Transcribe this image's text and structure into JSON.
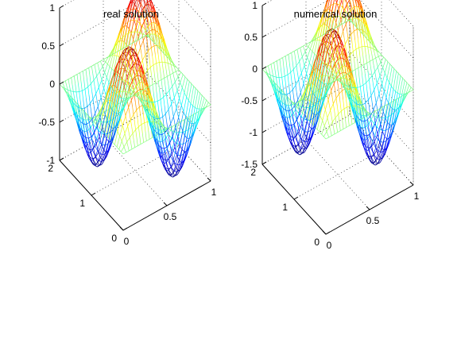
{
  "chart_data": [
    {
      "type": "surface",
      "title": "real solution",
      "function": "sin(2*pi*x)*sin(2*pi*y)",
      "x_range": [
        0,
        1
      ],
      "y_range": [
        0,
        2
      ],
      "z_range": [
        -1,
        1
      ],
      "z_ticks": [
        "-1",
        "-0.5",
        "0",
        "0.5",
        "1"
      ],
      "x_ticks": [
        "0",
        "0.5",
        "1"
      ],
      "y_ticks": [
        "0",
        "1",
        "2"
      ],
      "colormap": "jet",
      "grid": true,
      "mesh": "wireframe"
    },
    {
      "type": "surface",
      "title": "numerical solution",
      "function": "sin(2*pi*x)*sin(2*pi*y)",
      "x_range": [
        0,
        1
      ],
      "y_range": [
        0,
        2
      ],
      "z_range": [
        -1.5,
        1
      ],
      "z_ticks": [
        "-1.5",
        "-1",
        "-0.5",
        "0",
        "0.5",
        "1"
      ],
      "x_ticks": [
        "0",
        "0.5",
        "1"
      ],
      "y_ticks": [
        "0",
        "1",
        "2"
      ],
      "colormap": "jet",
      "grid": true,
      "mesh": "wireframe"
    }
  ]
}
